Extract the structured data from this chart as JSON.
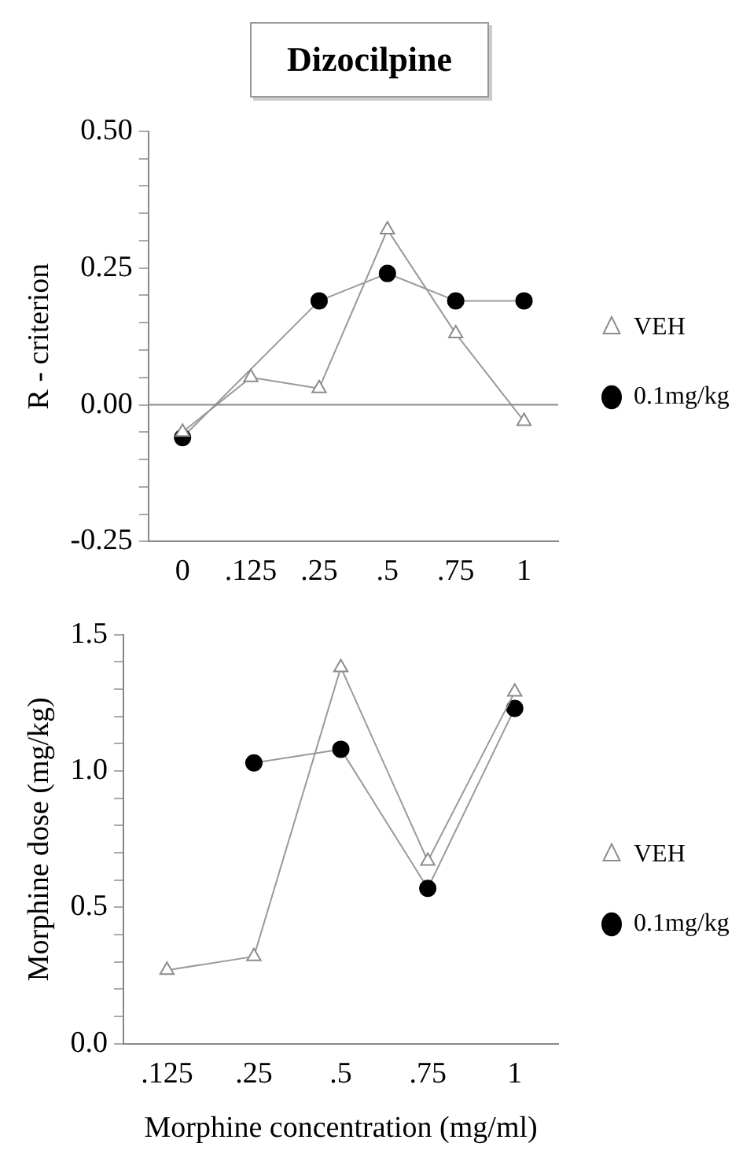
{
  "chart_data": [
    {
      "type": "line",
      "title": "Dizocilpine",
      "ylabel": "R - criterion",
      "categories": [
        "0",
        ".125",
        ".25",
        ".5",
        ".75",
        "1"
      ],
      "series": [
        {
          "name": "VEH",
          "color": "#8c8c8c",
          "marker": "triangle",
          "values": [
            -0.05,
            0.05,
            0.03,
            0.32,
            0.13,
            -0.03
          ]
        },
        {
          "name": "0.1mg/kg",
          "color": "#000000",
          "marker": "circle",
          "values": [
            -0.06,
            null,
            0.19,
            0.24,
            0.19,
            0.19
          ]
        }
      ],
      "ylim": [
        -0.25,
        0.5
      ],
      "yticks": [
        {
          "value": -0.25,
          "label": "-0.25"
        },
        {
          "value": -0.2,
          "label": null
        },
        {
          "value": -0.15,
          "label": null
        },
        {
          "value": -0.1,
          "label": null
        },
        {
          "value": -0.05,
          "label": null
        },
        {
          "value": 0,
          "label": "0.00"
        },
        {
          "value": 0.05,
          "label": null
        },
        {
          "value": 0.1,
          "label": null
        },
        {
          "value": 0.15,
          "label": null
        },
        {
          "value": 0.2,
          "label": null
        },
        {
          "value": 0.25,
          "label": "0.25"
        },
        {
          "value": 0.3,
          "label": null
        },
        {
          "value": 0.35,
          "label": null
        },
        {
          "value": 0.4,
          "label": null
        },
        {
          "value": 0.45,
          "label": null
        },
        {
          "value": 0.5,
          "label": "0.50"
        }
      ],
      "ref_lines": [
        {
          "axis": "y",
          "value": 0,
          "color": "#8c8c8c"
        }
      ],
      "grid": false,
      "legend": "right"
    },
    {
      "type": "line",
      "ylabel": "Morphine dose (mg/kg)",
      "xlabel": "Morphine concentration (mg/ml)",
      "categories": [
        ".125",
        ".25",
        ".5",
        ".75",
        "1"
      ],
      "series": [
        {
          "name": "VEH",
          "color": "#8c8c8c",
          "marker": "triangle",
          "values": [
            0.27,
            0.32,
            1.38,
            0.67,
            1.29
          ]
        },
        {
          "name": "0.1mg/kg",
          "color": "#000000",
          "marker": "circle",
          "values": [
            null,
            1.03,
            1.08,
            0.57,
            1.23
          ]
        }
      ],
      "ylim": [
        0,
        1.5
      ],
      "yticks": [
        {
          "value": 0,
          "label": "0.0"
        },
        {
          "value": 0.1,
          "label": null
        },
        {
          "value": 0.2,
          "label": null
        },
        {
          "value": 0.3,
          "label": null
        },
        {
          "value": 0.4,
          "label": null
        },
        {
          "value": 0.5,
          "label": "0.5"
        },
        {
          "value": 0.6,
          "label": null
        },
        {
          "value": 0.7,
          "label": null
        },
        {
          "value": 0.8,
          "label": null
        },
        {
          "value": 0.9,
          "label": null
        },
        {
          "value": 1,
          "label": "1.0"
        },
        {
          "value": 1.1,
          "label": null
        },
        {
          "value": 1.2,
          "label": null
        },
        {
          "value": 1.3,
          "label": null
        },
        {
          "value": 1.4,
          "label": null
        },
        1.5
      ],
      "grid": false,
      "legend": "right"
    }
  ]
}
